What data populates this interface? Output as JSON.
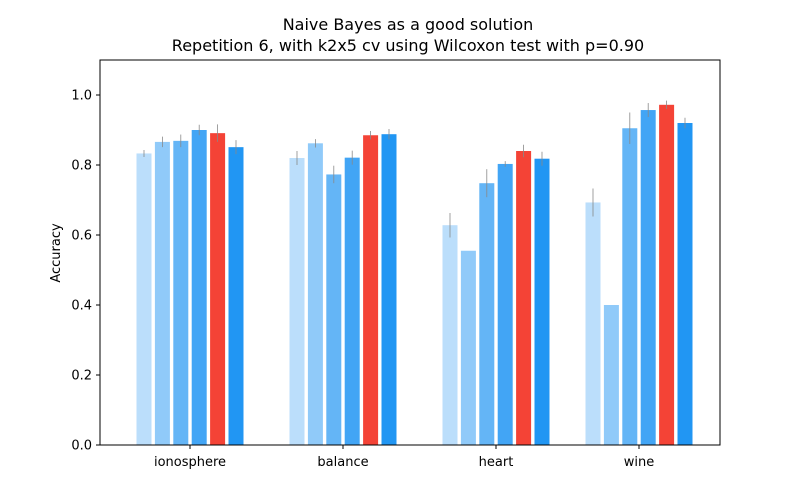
{
  "chart_data": {
    "type": "bar",
    "title_line1": "Naive Bayes as a good solution",
    "title_line2": "Repetition 6, with k2x5 cv using Wilcoxon test with p=0.90",
    "xlabel": "",
    "ylabel": "Accuracy",
    "ylim": [
      0,
      1.1
    ],
    "yticks": [
      "0.0",
      "0.2",
      "0.4",
      "0.6",
      "0.8",
      "1.0"
    ],
    "ytick_values": [
      0,
      0.2,
      0.4,
      0.6,
      0.8,
      1.0
    ],
    "categories": [
      "ionosphere",
      "balance",
      "heart",
      "wine"
    ],
    "grid": false,
    "legend": "none",
    "bar_colors": [
      "#bbdefb",
      "#90caf9",
      "#64b5f6",
      "#42a5f5",
      "#f44336",
      "#2196f3"
    ],
    "error_color": "#888888",
    "series": [
      {
        "values": [
          0.833,
          0.82,
          0.628,
          0.693
        ],
        "errors": [
          0.01,
          0.02,
          0.035,
          0.04
        ]
      },
      {
        "values": [
          0.866,
          0.862,
          0.555,
          0.4
        ],
        "errors": [
          0.015,
          0.012,
          0.0,
          0.0
        ]
      },
      {
        "values": [
          0.869,
          0.773,
          0.748,
          0.905
        ],
        "errors": [
          0.018,
          0.025,
          0.04,
          0.045
        ]
      },
      {
        "values": [
          0.9,
          0.821,
          0.803,
          0.957
        ],
        "errors": [
          0.015,
          0.02,
          0.008,
          0.02
        ]
      },
      {
        "values": [
          0.891,
          0.885,
          0.84,
          0.972
        ],
        "errors": [
          0.025,
          0.012,
          0.018,
          0.012
        ]
      },
      {
        "values": [
          0.851,
          0.888,
          0.818,
          0.92
        ],
        "errors": [
          0.02,
          0.015,
          0.02,
          0.015
        ]
      }
    ]
  }
}
